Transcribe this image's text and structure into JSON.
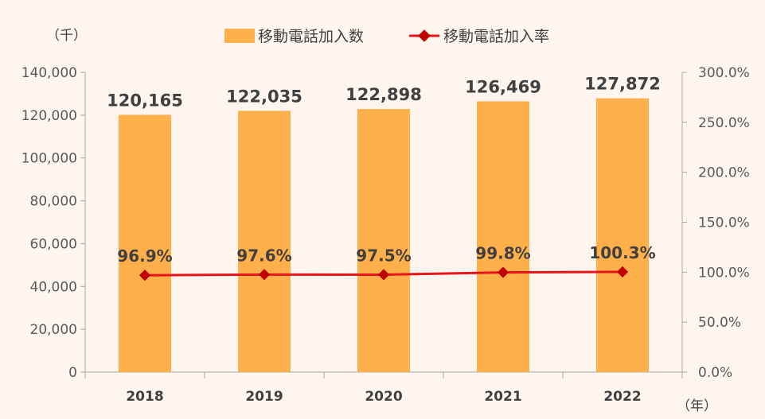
{
  "chart_data": {
    "type": "bar",
    "categories": [
      "2018",
      "2019",
      "2020",
      "2021",
      "2022"
    ],
    "series": [
      {
        "name": "移動電話加入数",
        "type": "bar",
        "axis": "left",
        "values": [
          120165,
          122035,
          122898,
          126469,
          127872
        ],
        "labels": [
          "120,165",
          "122,035",
          "122,898",
          "126,469",
          "127,872"
        ],
        "color": "#FFB04A"
      },
      {
        "name": "移動電話加入率",
        "type": "line",
        "axis": "right",
        "values": [
          96.9,
          97.6,
          97.5,
          99.8,
          100.3
        ],
        "labels": [
          "96.9%",
          "97.6%",
          "97.5%",
          "99.8%",
          "100.3%"
        ],
        "color": "#E8141B"
      }
    ],
    "y_left": {
      "label": "（千）",
      "ylim": [
        0,
        140000
      ],
      "ticks": [
        "0",
        "20,000",
        "40,000",
        "60,000",
        "80,000",
        "100,000",
        "120,000",
        "140,000"
      ]
    },
    "y_right": {
      "ylim": [
        0,
        300
      ],
      "ticks": [
        "0.0%",
        "50.0%",
        "100.0%",
        "150.0%",
        "200.0%",
        "250.0%",
        "300.0%"
      ]
    },
    "x_label": "（年）",
    "legend_position": "top",
    "grid": false
  }
}
